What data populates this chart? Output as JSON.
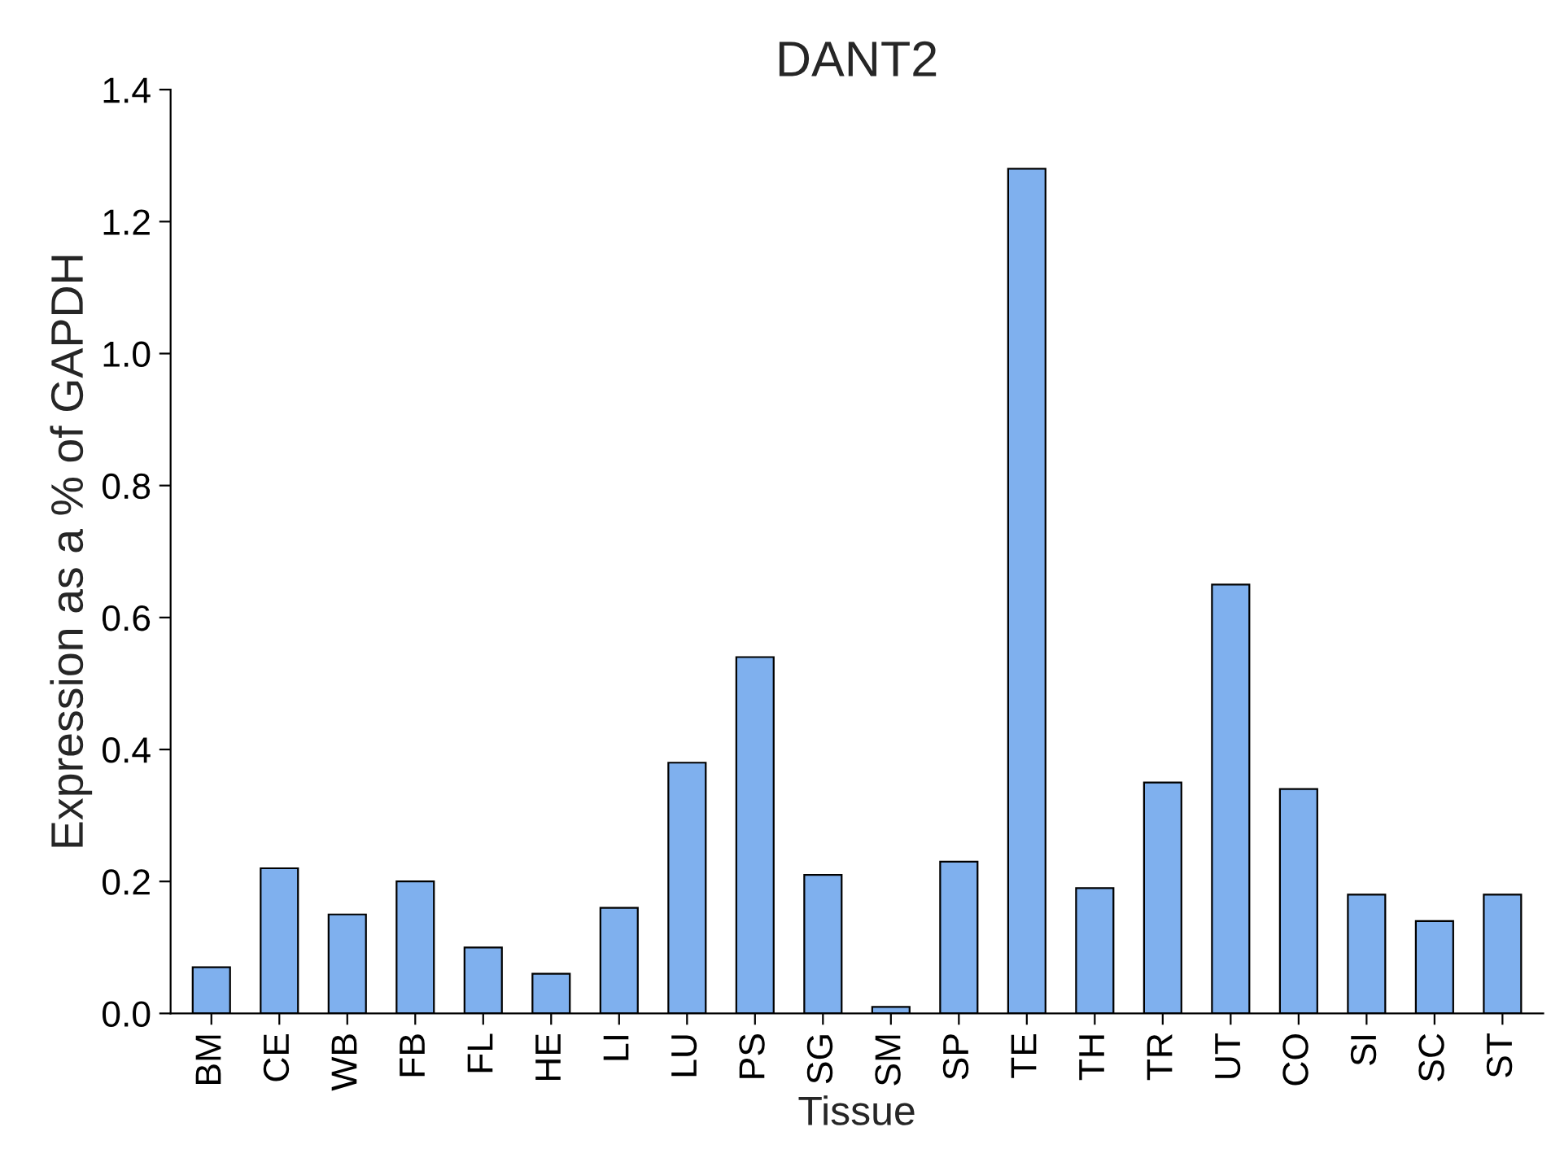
{
  "chart_data": {
    "type": "bar",
    "title": "DANT2",
    "xlabel": "Tissue",
    "ylabel": "Expression as a % of GAPDH",
    "categories": [
      "BM",
      "CE",
      "WB",
      "FB",
      "FL",
      "HE",
      "LI",
      "LU",
      "PS",
      "SG",
      "SM",
      "SP",
      "TE",
      "TH",
      "TR",
      "UT",
      "CO",
      "SI",
      "SC",
      "ST"
    ],
    "values": [
      0.07,
      0.22,
      0.15,
      0.2,
      0.1,
      0.06,
      0.16,
      0.38,
      0.54,
      0.21,
      0.01,
      0.23,
      1.28,
      0.19,
      0.35,
      0.65,
      0.34,
      0.18,
      0.14,
      0.18
    ],
    "color": "#7fb0ee",
    "ylim": [
      0,
      1.4
    ],
    "yticks": [
      {
        "value": 0,
        "label": "0.0"
      },
      {
        "value": 0.2,
        "label": "0.2"
      },
      {
        "value": 0.4,
        "label": "0.4"
      },
      {
        "value": 0.6,
        "label": "0.6"
      },
      {
        "value": 0.8,
        "label": "0.8"
      },
      {
        "value": 1.0,
        "label": "1.0"
      },
      {
        "value": 1.2,
        "label": "1.2"
      },
      {
        "value": 1.4,
        "label": "1.4"
      }
    ],
    "grid": false
  }
}
